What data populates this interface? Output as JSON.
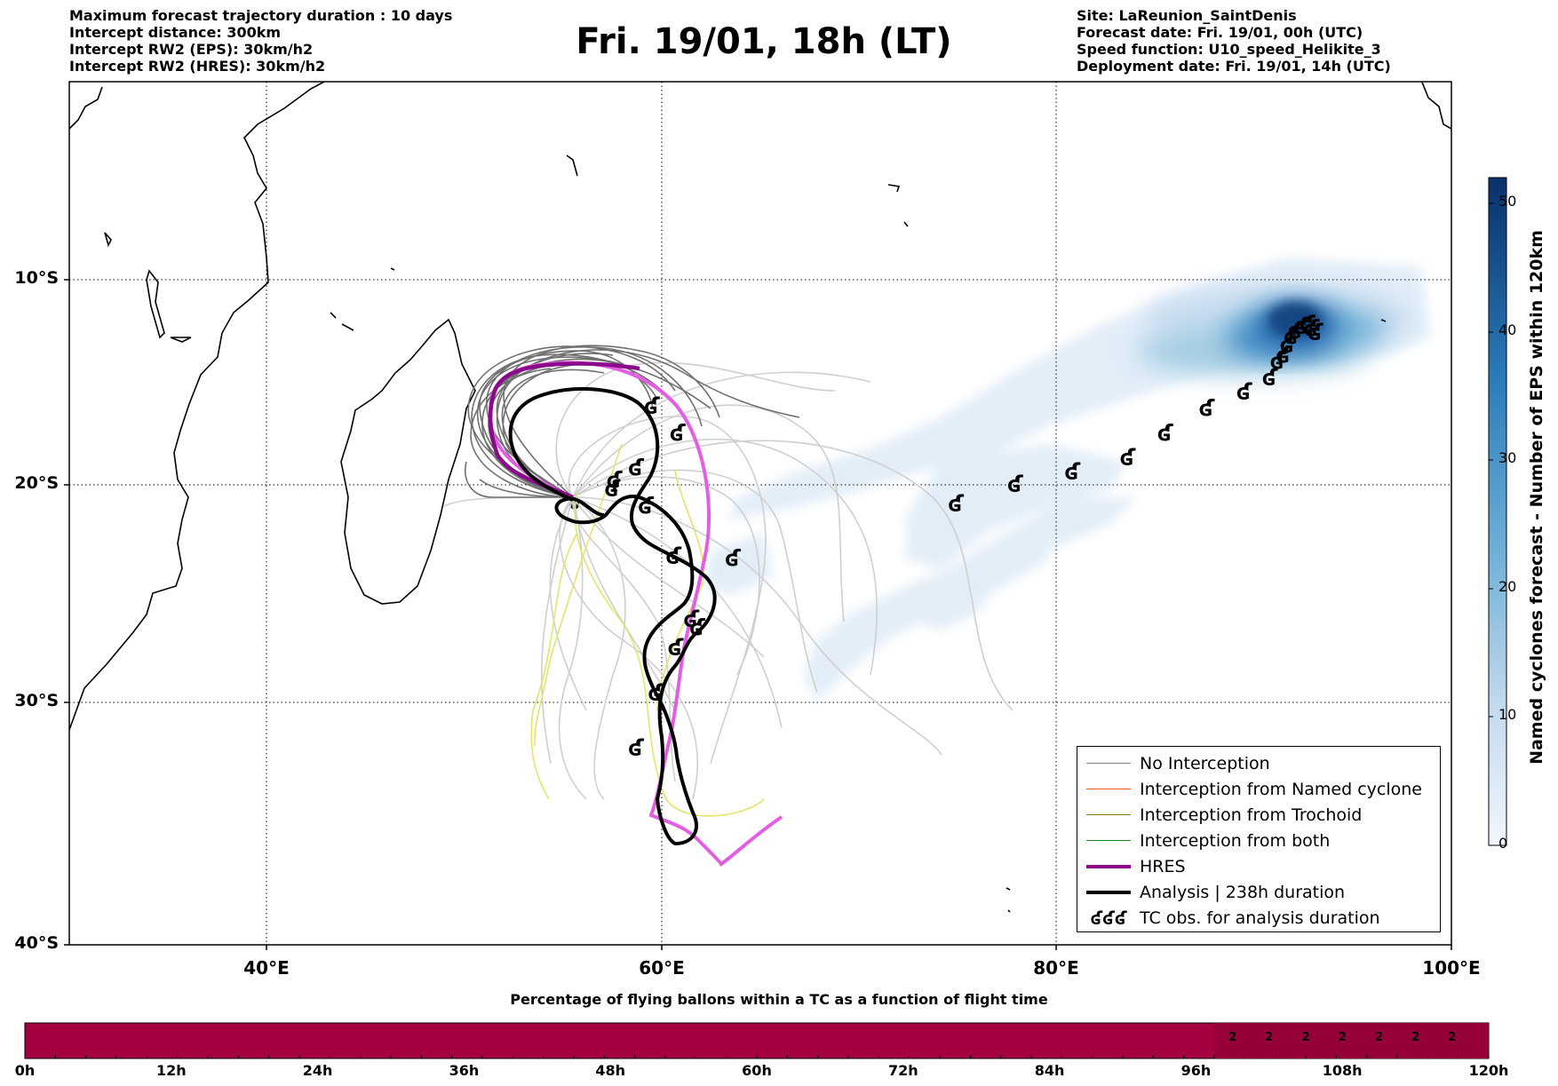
{
  "header": {
    "left_lines": [
      "Maximum forecast trajectory duration : 10 days",
      "Intercept distance: 300km",
      "Intercept RW2 (EPS):  30km/h2",
      "Intercept RW2 (HRES): 30km/h2"
    ],
    "title": "Fri. 19/01, 18h (LT)",
    "right_lines": [
      "Site: LaReunion_SaintDenis",
      "Forecast date: Fri. 19/01, 00h (UTC)",
      "Speed function: U10_speed_Helikite_3",
      "Deployment date: Fri. 19/01, 14h (UTC)"
    ]
  },
  "map": {
    "lat_labels": [
      "10°S",
      "20°S",
      "30°S",
      "40°S"
    ],
    "lon_labels": [
      "40°E",
      "60°E",
      "80°E",
      "100°E"
    ],
    "extent": {
      "lon": [
        30,
        100
      ],
      "lat": [
        -40,
        0.8
      ]
    },
    "colors": {
      "no_interception": "#808080",
      "interception_named": "#e8551a",
      "interception_trochoid": "#8b7a12",
      "interception_both": "#1e8b1e",
      "hres": "#8b0a8b",
      "hres_forecast": "#e55ee5",
      "analysis": "#000000",
      "density_low": "#deebf7",
      "density_high": "#08306b"
    }
  },
  "legend": {
    "items": [
      {
        "label": "No Interception",
        "icon": "gray-line"
      },
      {
        "label": "Interception from Named cyclone",
        "icon": "orange-line"
      },
      {
        "label": "Interception from Trochoid",
        "icon": "olive-line"
      },
      {
        "label": "Interception from both",
        "icon": "green-line"
      },
      {
        "label": "HRES",
        "icon": "purple-thick-line"
      },
      {
        "label": "Analysis | 238h duration",
        "icon": "black-thick-line"
      },
      {
        "label": "TC obs. for analysis duration",
        "icon": "cyclone-symbol-icon"
      }
    ],
    "cyclone_symbols": "ʛʛʛ"
  },
  "colorbar": {
    "label": "Named cyclones forecast - Number of EPS within 120km",
    "ticks": [
      "0",
      "10",
      "20",
      "30",
      "40",
      "50"
    ],
    "range": [
      0,
      52
    ]
  },
  "track": {
    "symbol": "ʛ",
    "obs": [
      [
        59.5,
        -16.2
      ],
      [
        60.8,
        -17.5
      ],
      [
        58.7,
        -19.2
      ],
      [
        57.6,
        -19.8
      ],
      [
        57.5,
        -20.2
      ],
      [
        59.2,
        -21.0
      ],
      [
        60.6,
        -23.3
      ],
      [
        63.6,
        -23.4
      ],
      [
        61.5,
        -26.2
      ],
      [
        61.8,
        -26.6
      ],
      [
        60.7,
        -27.5
      ],
      [
        59.7,
        -29.6
      ],
      [
        58.7,
        -31.9
      ],
      [
        74.9,
        -20.9
      ],
      [
        77.9,
        -20.0
      ],
      [
        80.8,
        -19.4
      ],
      [
        83.6,
        -18.7
      ],
      [
        85.5,
        -17.5
      ],
      [
        87.6,
        -16.3
      ],
      [
        89.5,
        -15.5
      ],
      [
        90.8,
        -14.8
      ],
      [
        91.2,
        -14.0
      ],
      [
        91.5,
        -13.7
      ],
      [
        91.7,
        -13.2
      ],
      [
        91.9,
        -12.8
      ],
      [
        92.1,
        -12.5
      ],
      [
        92.4,
        -12.3
      ],
      [
        92.7,
        -12.2
      ],
      [
        92.9,
        -12.4
      ],
      [
        93.1,
        -12.6
      ]
    ]
  },
  "bottom_bar": {
    "title": "Percentage of flying ballons within a TC as a function of flight time",
    "time_labels": [
      "0h",
      "12h",
      "24h",
      "36h",
      "48h",
      "60h",
      "72h",
      "84h",
      "96h",
      "108h",
      "120h"
    ],
    "fill_color": "#a50040",
    "cell_values": [
      "2",
      "2",
      "2",
      "2",
      "2",
      "2",
      "2"
    ],
    "cell_start_hour": 99,
    "cell_step_hours": 3,
    "percentages": [
      0,
      0,
      0,
      0,
      0,
      0,
      0,
      0,
      0,
      0,
      0,
      0,
      0,
      0,
      0,
      0,
      0,
      0,
      0,
      0,
      0,
      0,
      0,
      0,
      0,
      0,
      0,
      0,
      0,
      0,
      0,
      0,
      0,
      0,
      2,
      2,
      2,
      2,
      2,
      2,
      2,
      2,
      2,
      2,
      2,
      2,
      2,
      2
    ]
  }
}
